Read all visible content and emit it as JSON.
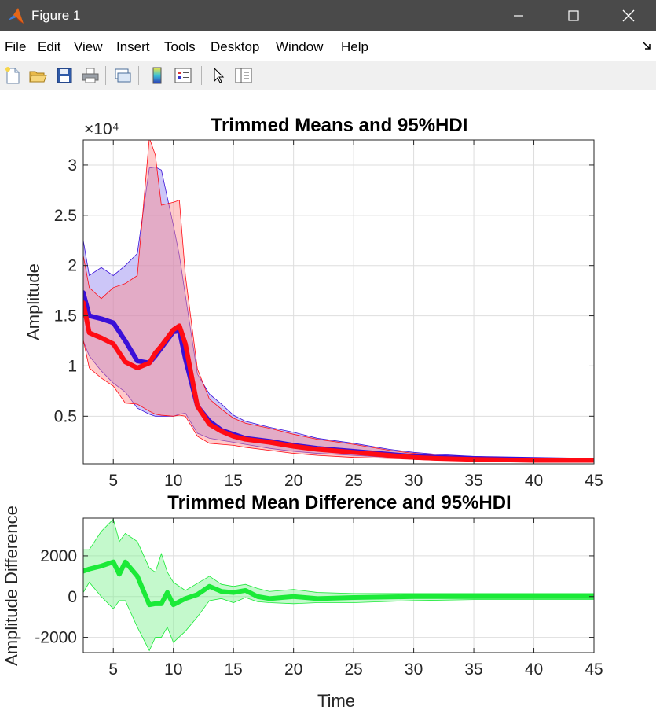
{
  "window": {
    "title": "Figure 1"
  },
  "menu": [
    "File",
    "Edit",
    "View",
    "Insert",
    "Tools",
    "Desktop",
    "Window",
    "Help"
  ],
  "colors": {
    "blue": "#3a10d8",
    "red": "#ff0b14",
    "green": "#1bea38"
  },
  "chart_data": [
    {
      "type": "area",
      "title": "Trimmed Means and 95%HDI",
      "xlabel": "",
      "ylabel": "Amplitude",
      "y_exponent": "×10⁴",
      "xlim": [
        2.5,
        45
      ],
      "ylim": [
        250,
        32500
      ],
      "xticks": [
        5,
        10,
        15,
        20,
        25,
        30,
        35,
        40,
        45
      ],
      "yticks": [
        5000,
        10000,
        15000,
        20000,
        25000,
        30000
      ],
      "ytick_labels": [
        "0.5",
        "1",
        "1.5",
        "2",
        "2.5",
        "3"
      ],
      "grid": true,
      "x": [
        2.5,
        3,
        4,
        5,
        6,
        7,
        8,
        8.5,
        9,
        10,
        10.5,
        11,
        12,
        13,
        14,
        15,
        16,
        18,
        20,
        22,
        25,
        28,
        30,
        32,
        35,
        40,
        45
      ],
      "series": [
        {
          "color": "#3a10d8",
          "mean": [
            17300,
            15000,
            14700,
            14300,
            12500,
            10500,
            10300,
            11000,
            11800,
            13400,
            13500,
            10700,
            6000,
            4500,
            3600,
            3200,
            2800,
            2500,
            2100,
            1800,
            1500,
            1200,
            1000,
            900,
            800,
            700,
            600
          ],
          "upper": [
            22500,
            19000,
            19800,
            19000,
            20000,
            21200,
            29700,
            29800,
            29500,
            24000,
            21000,
            17000,
            9200,
            7200,
            6200,
            5100,
            4500,
            3900,
            3400,
            2800,
            2300,
            1700,
            1400,
            1200,
            1000,
            800,
            700
          ],
          "lower": [
            12500,
            11000,
            9500,
            8300,
            7400,
            5800,
            5200,
            5000,
            5000,
            5000,
            5200,
            5300,
            3300,
            2800,
            2600,
            2400,
            2200,
            1800,
            1500,
            1300,
            1100,
            900,
            800,
            700,
            600,
            500,
            400
          ]
        },
        {
          "color": "#ff0b14",
          "mean": [
            16300,
            13300,
            12800,
            12200,
            10400,
            9800,
            10300,
            11300,
            12000,
            13600,
            14000,
            12200,
            6000,
            4200,
            3500,
            3000,
            2700,
            2400,
            2000,
            1700,
            1400,
            1100,
            900,
            800,
            700,
            600,
            600
          ],
          "upper": [
            21000,
            17800,
            16700,
            17800,
            18200,
            19000,
            32700,
            31000,
            26000,
            26300,
            26500,
            19000,
            9700,
            6700,
            5700,
            4800,
            4300,
            3800,
            3200,
            2700,
            2200,
            1600,
            1300,
            1100,
            900,
            800,
            700
          ],
          "lower": [
            12600,
            9800,
            8800,
            8000,
            6300,
            6200,
            5500,
            5200,
            5100,
            5000,
            5100,
            5000,
            3000,
            2300,
            2200,
            2100,
            1900,
            1600,
            1300,
            1100,
            900,
            800,
            700,
            600,
            600,
            500,
            400
          ]
        }
      ]
    },
    {
      "type": "area",
      "title": "Trimmed Mean Difference and 95%HDI",
      "xlabel": "Time",
      "ylabel": "Amplitude Difference",
      "xlim": [
        2.5,
        45
      ],
      "ylim": [
        -2750,
        3850
      ],
      "xticks": [
        5,
        10,
        15,
        20,
        25,
        30,
        35,
        40,
        45
      ],
      "yticks": [
        -2000,
        0,
        2000
      ],
      "grid": true,
      "x": [
        2.5,
        3,
        4,
        5,
        5.5,
        6,
        7,
        8,
        8.5,
        9,
        9.5,
        10,
        11,
        12,
        13,
        14,
        15,
        16,
        17,
        18,
        20,
        22,
        25,
        30,
        35,
        40,
        45
      ],
      "series": [
        {
          "color": "#1bea38",
          "mean": [
            1250,
            1350,
            1500,
            1700,
            1100,
            1700,
            1000,
            -400,
            -350,
            -350,
            200,
            -400,
            -100,
            100,
            500,
            250,
            200,
            300,
            0,
            -100,
            0,
            -100,
            -50,
            0,
            0,
            0,
            0
          ],
          "upper": [
            2300,
            2300,
            3200,
            3800,
            2700,
            3100,
            2700,
            1400,
            1200,
            2100,
            1200,
            700,
            300,
            650,
            1000,
            600,
            500,
            600,
            400,
            250,
            350,
            200,
            150,
            150,
            150,
            150,
            150
          ],
          "lower": [
            200,
            700,
            0,
            -600,
            -200,
            -200,
            -1500,
            -2650,
            -2000,
            -2000,
            -1500,
            -2250,
            -1700,
            -1000,
            -200,
            -100,
            -300,
            -50,
            -250,
            -300,
            -350,
            -300,
            -300,
            -200,
            -150,
            -150,
            -150
          ]
        }
      ]
    }
  ]
}
